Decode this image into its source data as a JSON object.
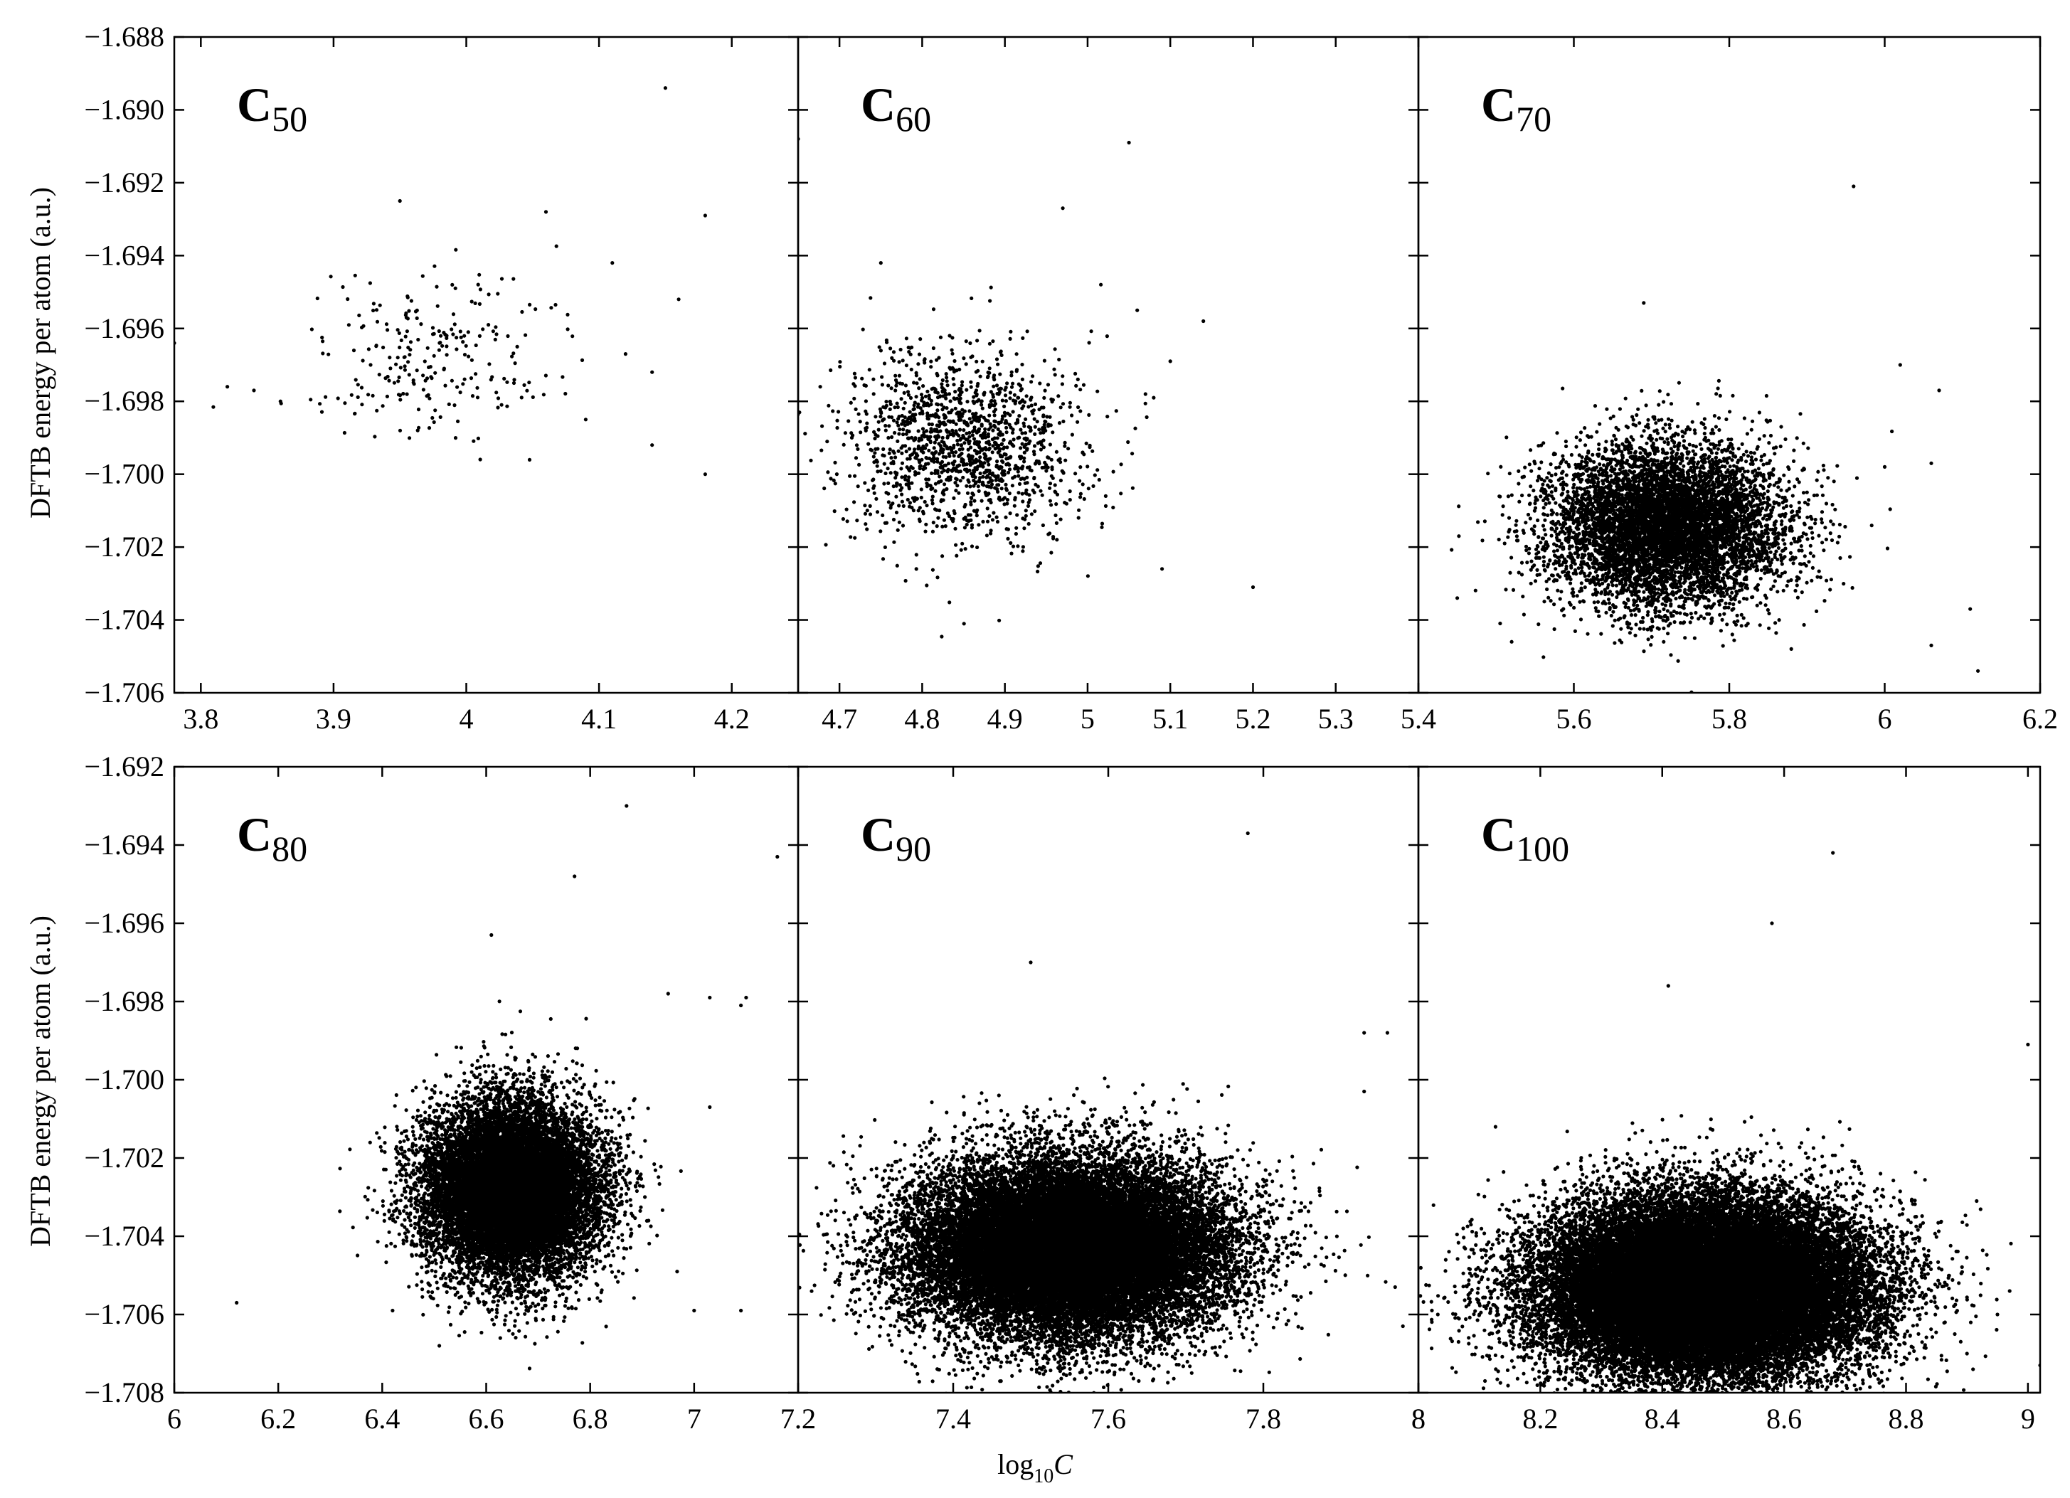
{
  "figure": {
    "ylabel": "DFTB energy per atom (a.u.)",
    "xlabel_base": "log",
    "xlabel_sub": "10",
    "xlabel_var": "C"
  },
  "chart_data": [
    {
      "type": "scatter",
      "panel": "C50",
      "label_main": "C",
      "label_sub": "50",
      "xlim": [
        3.78,
        4.25
      ],
      "ylim": [
        -1.706,
        -1.688
      ],
      "xticks": [
        3.8,
        3.9,
        4.0,
        4.1,
        4.2
      ],
      "xtick_labels": [
        "3.8",
        "3.9",
        "4",
        "4.1",
        "4.2"
      ],
      "yticks": [
        -1.688,
        -1.69,
        -1.692,
        -1.694,
        -1.696,
        -1.698,
        -1.7,
        -1.702,
        -1.704,
        -1.706
      ],
      "ytick_labels": [
        "−1.688",
        "−1.690",
        "−1.692",
        "−1.694",
        "−1.696",
        "−1.698",
        "−1.700",
        "−1.702",
        "−1.704",
        "−1.706"
      ],
      "cluster": {
        "x_center": 3.97,
        "x_sd": 0.045,
        "y_center": -1.6967,
        "y_sd": 0.0012,
        "n": 240
      },
      "outliers": [
        [
          4.15,
          -1.6894
        ],
        [
          3.95,
          -1.6925
        ],
        [
          4.06,
          -1.6928
        ],
        [
          4.18,
          -1.6929
        ],
        [
          4.18,
          -1.7
        ],
        [
          4.16,
          -1.6952
        ],
        [
          4.14,
          -1.6972
        ],
        [
          4.14,
          -1.6992
        ],
        [
          4.11,
          -1.6942
        ],
        [
          4.12,
          -1.6967
        ],
        [
          4.09,
          -1.6985
        ],
        [
          3.82,
          -1.6976
        ],
        [
          3.84,
          -1.6977
        ],
        [
          3.86,
          -1.698
        ],
        [
          3.78,
          -1.6964
        ]
      ]
    },
    {
      "type": "scatter",
      "panel": "C60",
      "label_main": "C",
      "label_sub": "60",
      "xlim": [
        4.65,
        5.4
      ],
      "ylim": [
        -1.706,
        -1.688
      ],
      "xticks": [
        4.7,
        4.8,
        4.9,
        5.0,
        5.1,
        5.2,
        5.3,
        5.4
      ],
      "xtick_labels": [
        "4.7",
        "4.8",
        "4.9",
        "5",
        "5.1",
        "5.2",
        "5.3",
        "5.4"
      ],
      "cluster": {
        "x_center": 4.85,
        "x_sd": 0.07,
        "y_center": -1.6992,
        "y_sd": 0.0013,
        "n": 1500
      },
      "outliers": [
        [
          5.05,
          -1.6909
        ],
        [
          4.97,
          -1.6927
        ],
        [
          4.75,
          -1.6942
        ],
        [
          5.2,
          -1.7031
        ],
        [
          5.14,
          -1.6958
        ],
        [
          5.09,
          -1.7026
        ],
        [
          5.07,
          -1.6978
        ],
        [
          5.08,
          -1.6979
        ],
        [
          5.1,
          -1.6969
        ],
        [
          5.06,
          -1.6955
        ],
        [
          4.65,
          -1.6908
        ]
      ]
    },
    {
      "type": "scatter",
      "panel": "C70",
      "label_main": "C",
      "label_sub": "70",
      "xlim": [
        5.4,
        6.2
      ],
      "ylim": [
        -1.706,
        -1.688
      ],
      "xticks": [
        5.6,
        5.8,
        6.0,
        6.2
      ],
      "xtick_labels": [
        "5.6",
        "5.8",
        "6",
        "6.2"
      ],
      "cluster": {
        "x_center": 5.72,
        "x_sd": 0.075,
        "y_center": -1.7014,
        "y_sd": 0.0011,
        "n": 7000
      },
      "outliers": [
        [
          5.96,
          -1.6921
        ],
        [
          5.69,
          -1.6953
        ],
        [
          6.12,
          -1.7054
        ],
        [
          6.11,
          -1.7037
        ],
        [
          6.06,
          -1.7047
        ],
        [
          5.45,
          -1.7034
        ],
        [
          6.07,
          -1.6977
        ],
        [
          6.02,
          -1.697
        ],
        [
          6.0,
          -1.6998
        ],
        [
          6.06,
          -1.6997
        ]
      ]
    },
    {
      "type": "scatter",
      "panel": "C80",
      "label_main": "C",
      "label_sub": "80",
      "xlim": [
        6.0,
        7.2
      ],
      "ylim": [
        -1.708,
        -1.692
      ],
      "xticks": [
        6.0,
        6.2,
        6.4,
        6.6,
        6.8,
        7.0,
        7.2
      ],
      "xtick_labels": [
        "6",
        "6.2",
        "6.4",
        "6.6",
        "6.8",
        "7",
        "7.2"
      ],
      "yticks": [
        -1.692,
        -1.694,
        -1.696,
        -1.698,
        -1.7,
        -1.702,
        -1.704,
        -1.706,
        -1.708
      ],
      "ytick_labels": [
        "−1.692",
        "−1.694",
        "−1.696",
        "−1.698",
        "−1.700",
        "−1.702",
        "−1.704",
        "−1.706",
        "−1.708"
      ],
      "cluster": {
        "x_center": 6.65,
        "x_sd": 0.085,
        "y_center": -1.7028,
        "y_sd": 0.0011,
        "n": 14000
      },
      "outliers": [
        [
          6.87,
          -1.693
        ],
        [
          6.77,
          -1.6948
        ],
        [
          6.61,
          -1.6963
        ],
        [
          6.12,
          -1.7057
        ],
        [
          7.16,
          -1.6943
        ],
        [
          7.1,
          -1.6979
        ],
        [
          7.09,
          -1.6981
        ],
        [
          7.03,
          -1.6979
        ],
        [
          6.95,
          -1.6978
        ],
        [
          7.0,
          -1.7059
        ],
        [
          7.09,
          -1.7059
        ],
        [
          6.42,
          -1.7059
        ],
        [
          7.03,
          -1.7007
        ]
      ]
    },
    {
      "type": "scatter",
      "panel": "C90",
      "label_main": "C",
      "label_sub": "90",
      "xlim": [
        7.2,
        8.0
      ],
      "ylim": [
        -1.708,
        -1.692
      ],
      "xticks": [
        7.2,
        7.4,
        7.6,
        7.8,
        8.0
      ],
      "xtick_labels": [
        "7.2",
        "7.4",
        "7.6",
        "7.8",
        "8"
      ],
      "cluster": {
        "x_center": 7.55,
        "x_sd": 0.1,
        "y_center": -1.7043,
        "y_sd": 0.0011,
        "n": 26000
      },
      "outliers": [
        [
          7.78,
          -1.6937
        ],
        [
          7.5,
          -1.697
        ],
        [
          7.98,
          -1.7063
        ],
        [
          7.97,
          -1.7053
        ],
        [
          7.93,
          -1.6988
        ],
        [
          7.96,
          -1.6988
        ],
        [
          8.05,
          -1.7043
        ],
        [
          7.93,
          -1.7003
        ]
      ]
    },
    {
      "type": "scatter",
      "panel": "C100",
      "label_main": "C",
      "label_sub": "100",
      "xlim": [
        8.0,
        9.02
      ],
      "ylim": [
        -1.708,
        -1.692
      ],
      "xticks": [
        8.0,
        8.2,
        8.4,
        8.6,
        8.8,
        9.0
      ],
      "xtick_labels": [
        "8",
        "8.2",
        "8.4",
        "8.6",
        "8.8",
        "9"
      ],
      "cluster": {
        "x_center": 8.47,
        "x_sd": 0.13,
        "y_center": -1.7053,
        "y_sd": 0.0011,
        "n": 36000
      },
      "outliers": [
        [
          8.68,
          -1.6942
        ],
        [
          8.58,
          -1.696
        ],
        [
          8.41,
          -1.6976
        ],
        [
          9.0,
          -1.6991
        ],
        [
          8.97,
          -1.7054
        ],
        [
          8.95,
          -1.706
        ],
        [
          8.9,
          -1.707
        ],
        [
          8.88,
          -1.7065
        ],
        [
          8.91,
          -1.7074
        ],
        [
          9.02,
          -1.7073
        ],
        [
          8.1,
          -1.706
        ]
      ]
    }
  ]
}
